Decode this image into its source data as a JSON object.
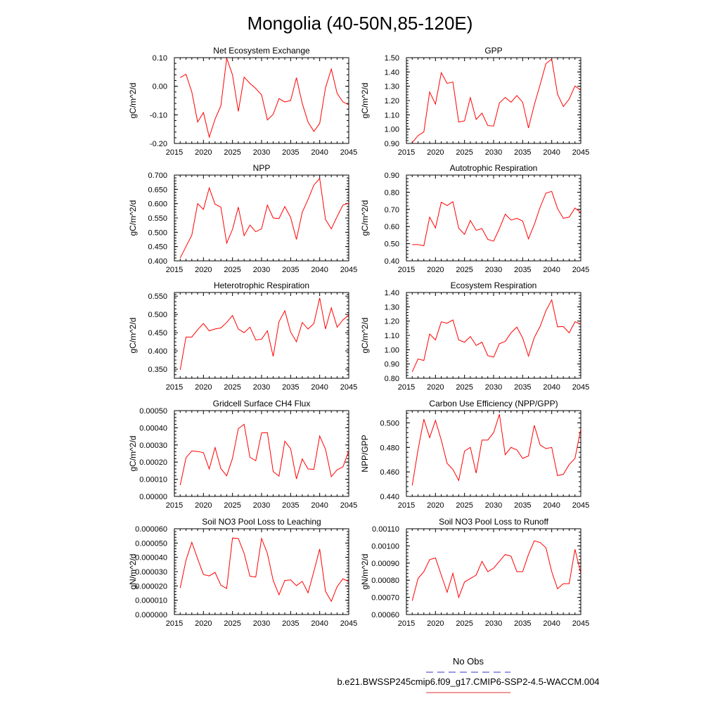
{
  "figure_title": "Mongolia (40-50N,85-120E)",
  "legend": {
    "entries": [
      {
        "label": "No Obs",
        "color": "#3333cc",
        "dashed": true
      },
      {
        "label": "b.e21.BWSSP245cmip6.f09_g17.CMIP6-SSP2-4.5-WACCM.004",
        "color": "#e03030",
        "dashed": false
      }
    ]
  },
  "line_color": "#ff0000",
  "chart_data": [
    {
      "type": "line",
      "title": "Net Ecosystem Exchange",
      "ylabel": "gC/m^2/d",
      "xlim": [
        2015,
        2045
      ],
      "ylim": [
        -0.2,
        0.1
      ],
      "xticks": [
        "2015",
        "2020",
        "2025",
        "2030",
        "2035",
        "2040",
        "2045"
      ],
      "yticks": [
        "-0.20",
        "-0.10",
        "0.00",
        "0.10"
      ],
      "x": [
        2016,
        2017,
        2018,
        2019,
        2020,
        2021,
        2022,
        2023,
        2024,
        2025,
        2026,
        2027,
        2028,
        2029,
        2030,
        2031,
        2032,
        2033,
        2034,
        2035,
        2036,
        2037,
        2038,
        2039,
        2040,
        2041,
        2042,
        2043,
        2044,
        2045
      ],
      "series": [
        {
          "values": [
            0.03,
            0.042,
            -0.02,
            -0.125,
            -0.092,
            -0.178,
            -0.115,
            -0.068,
            0.098,
            0.04,
            -0.088,
            0.032,
            0.01,
            -0.008,
            -0.03,
            -0.118,
            -0.098,
            -0.043,
            -0.055,
            -0.05,
            0.03,
            -0.06,
            -0.125,
            -0.158,
            -0.13,
            -0.005,
            0.06,
            -0.025,
            -0.055,
            -0.065
          ]
        }
      ]
    },
    {
      "type": "line",
      "title": "GPP",
      "ylabel": "gC/m^2/d",
      "xlim": [
        2015,
        2045
      ],
      "ylim": [
        0.9,
        1.5
      ],
      "xticks": [
        "2015",
        "2020",
        "2025",
        "2030",
        "2035",
        "2040",
        "2045"
      ],
      "yticks": [
        "0.90",
        "1.00",
        "1.10",
        "1.20",
        "1.30",
        "1.40",
        "1.50"
      ],
      "x": [
        2016,
        2017,
        2018,
        2019,
        2020,
        2021,
        2022,
        2023,
        2024,
        2025,
        2026,
        2027,
        2028,
        2029,
        2030,
        2031,
        2032,
        2033,
        2034,
        2035,
        2036,
        2037,
        2038,
        2039,
        2040,
        2041,
        2042,
        2043,
        2044,
        2045
      ],
      "series": [
        {
          "values": [
            0.905,
            0.955,
            0.98,
            1.26,
            1.175,
            1.395,
            1.32,
            1.33,
            1.05,
            1.058,
            1.22,
            1.068,
            1.112,
            1.025,
            1.022,
            1.183,
            1.222,
            1.188,
            1.235,
            1.188,
            1.008,
            1.17,
            1.31,
            1.458,
            1.49,
            1.245,
            1.158,
            1.21,
            1.302,
            1.272
          ]
        }
      ]
    },
    {
      "type": "line",
      "title": "NPP",
      "ylabel": "gC/m^2/d",
      "xlim": [
        2015,
        2045
      ],
      "ylim": [
        0.4,
        0.7
      ],
      "xticks": [
        "2015",
        "2020",
        "2025",
        "2030",
        "2035",
        "2040",
        "2045"
      ],
      "yticks": [
        "0.400",
        "0.450",
        "0.500",
        "0.550",
        "0.600",
        "0.650",
        "0.700"
      ],
      "x": [
        2016,
        2017,
        2018,
        2019,
        2020,
        2021,
        2022,
        2023,
        2024,
        2025,
        2026,
        2027,
        2028,
        2029,
        2030,
        2031,
        2032,
        2033,
        2034,
        2035,
        2036,
        2037,
        2038,
        2039,
        2040,
        2041,
        2042,
        2043,
        2044,
        2045
      ],
      "series": [
        {
          "values": [
            0.41,
            0.45,
            0.49,
            0.6,
            0.58,
            0.655,
            0.598,
            0.588,
            0.462,
            0.51,
            0.588,
            0.488,
            0.525,
            0.502,
            0.512,
            0.595,
            0.55,
            0.548,
            0.59,
            0.552,
            0.475,
            0.57,
            0.615,
            0.665,
            0.688,
            0.545,
            0.512,
            0.555,
            0.595,
            0.602
          ]
        }
      ]
    },
    {
      "type": "line",
      "title": "Autotrophic Respiration",
      "ylabel": "gC/m^2/d",
      "xlim": [
        2015,
        2045
      ],
      "ylim": [
        0.4,
        0.9
      ],
      "xticks": [
        "2015",
        "2020",
        "2025",
        "2030",
        "2035",
        "2040",
        "2045"
      ],
      "yticks": [
        "0.40",
        "0.50",
        "0.60",
        "0.70",
        "0.80",
        "0.90"
      ],
      "x": [
        2016,
        2017,
        2018,
        2019,
        2020,
        2021,
        2022,
        2023,
        2024,
        2025,
        2026,
        2027,
        2028,
        2029,
        2030,
        2031,
        2032,
        2033,
        2034,
        2035,
        2036,
        2037,
        2038,
        2039,
        2040,
        2041,
        2042,
        2043,
        2044,
        2045
      ],
      "series": [
        {
          "values": [
            0.495,
            0.495,
            0.488,
            0.655,
            0.592,
            0.742,
            0.722,
            0.745,
            0.59,
            0.555,
            0.635,
            0.578,
            0.588,
            0.525,
            0.515,
            0.588,
            0.672,
            0.638,
            0.648,
            0.632,
            0.528,
            0.612,
            0.712,
            0.795,
            0.805,
            0.705,
            0.648,
            0.655,
            0.708,
            0.682
          ]
        }
      ]
    },
    {
      "type": "line",
      "title": "Heterotrophic Respiration",
      "ylabel": "gC/m^2/d",
      "xlim": [
        2015,
        2045
      ],
      "ylim": [
        0.325,
        0.56
      ],
      "xticks": [
        "2015",
        "2020",
        "2025",
        "2030",
        "2035",
        "2040",
        "2045"
      ],
      "yticks": [
        "0.350",
        "0.400",
        "0.450",
        "0.500",
        "0.550"
      ],
      "x": [
        2016,
        2017,
        2018,
        2019,
        2020,
        2021,
        2022,
        2023,
        2024,
        2025,
        2026,
        2027,
        2028,
        2029,
        2030,
        2031,
        2032,
        2033,
        2034,
        2035,
        2036,
        2037,
        2038,
        2039,
        2040,
        2041,
        2042,
        2043,
        2044,
        2045
      ],
      "series": [
        {
          "values": [
            0.348,
            0.438,
            0.438,
            0.458,
            0.475,
            0.455,
            0.46,
            0.463,
            0.478,
            0.497,
            0.46,
            0.45,
            0.465,
            0.43,
            0.432,
            0.455,
            0.385,
            0.48,
            0.51,
            0.452,
            0.425,
            0.478,
            0.46,
            0.475,
            0.545,
            0.46,
            0.518,
            0.465,
            0.485,
            0.498
          ]
        }
      ]
    },
    {
      "type": "line",
      "title": "Ecosystem Respiration",
      "ylabel": "gC/m^2/d",
      "xlim": [
        2015,
        2045
      ],
      "ylim": [
        0.8,
        1.4
      ],
      "xticks": [
        "2015",
        "2020",
        "2025",
        "2030",
        "2035",
        "2040",
        "2045"
      ],
      "yticks": [
        "0.80",
        "0.90",
        "1.00",
        "1.10",
        "1.20",
        "1.30",
        "1.40"
      ],
      "x": [
        2016,
        2017,
        2018,
        2019,
        2020,
        2021,
        2022,
        2023,
        2024,
        2025,
        2026,
        2027,
        2028,
        2029,
        2030,
        2031,
        2032,
        2033,
        2034,
        2035,
        2036,
        2037,
        2038,
        2039,
        2040,
        2041,
        2042,
        2043,
        2044,
        2045
      ],
      "series": [
        {
          "values": [
            0.845,
            0.935,
            0.925,
            1.11,
            1.068,
            1.195,
            1.185,
            1.208,
            1.068,
            1.052,
            1.092,
            1.03,
            1.052,
            0.958,
            0.948,
            1.042,
            1.058,
            1.118,
            1.158,
            1.082,
            0.955,
            1.085,
            1.162,
            1.272,
            1.348,
            1.16,
            1.162,
            1.118,
            1.195,
            1.18
          ]
        }
      ]
    },
    {
      "type": "line",
      "title": "Gridcell Surface CH4 Flux",
      "ylabel": "gC/m^2/d",
      "xlim": [
        2015,
        2045
      ],
      "ylim": [
        0.0,
        0.0005
      ],
      "xticks": [
        "2015",
        "2020",
        "2025",
        "2030",
        "2035",
        "2040",
        "2045"
      ],
      "yticks": [
        "0.00000",
        "0.00010",
        "0.00020",
        "0.00030",
        "0.00040",
        "0.00050"
      ],
      "x": [
        2016,
        2017,
        2018,
        2019,
        2020,
        2021,
        2022,
        2023,
        2024,
        2025,
        2026,
        2027,
        2028,
        2029,
        2030,
        2031,
        2032,
        2033,
        2034,
        2035,
        2036,
        2037,
        2038,
        2039,
        2040,
        2041,
        2042,
        2043,
        2044,
        2045
      ],
      "series": [
        {
          "values": [
            6.5e-05,
            0.000225,
            0.000265,
            0.000262,
            0.000255,
            0.00016,
            0.000285,
            0.000162,
            0.00012,
            0.000222,
            0.000395,
            0.00042,
            0.000228,
            0.000208,
            0.00037,
            0.000372,
            0.000145,
            0.000118,
            0.000322,
            0.000278,
            0.000102,
            0.000218,
            0.00016,
            0.000158,
            0.000352,
            0.000275,
            0.000115,
            0.000155,
            0.000172,
            0.000265
          ]
        }
      ]
    },
    {
      "type": "line",
      "title": "Carbon Use Efficiency (NPP/GPP)",
      "ylabel": "NPP/GPP",
      "xlim": [
        2015,
        2045
      ],
      "ylim": [
        0.44,
        0.51
      ],
      "xticks": [
        "2015",
        "2020",
        "2025",
        "2030",
        "2035",
        "2040",
        "2045"
      ],
      "yticks": [
        "0.440",
        "0.460",
        "0.480",
        "0.500"
      ],
      "x": [
        2016,
        2017,
        2018,
        2019,
        2020,
        2021,
        2022,
        2023,
        2024,
        2025,
        2026,
        2027,
        2028,
        2029,
        2030,
        2031,
        2032,
        2033,
        2034,
        2035,
        2036,
        2037,
        2038,
        2039,
        2040,
        2041,
        2042,
        2043,
        2044,
        2045
      ],
      "series": [
        {
          "values": [
            0.449,
            0.478,
            0.503,
            0.488,
            0.502,
            0.486,
            0.467,
            0.462,
            0.453,
            0.477,
            0.48,
            0.459,
            0.486,
            0.486,
            0.492,
            0.507,
            0.474,
            0.48,
            0.478,
            0.471,
            0.473,
            0.498,
            0.482,
            0.479,
            0.48,
            0.457,
            0.458,
            0.466,
            0.471,
            0.495
          ]
        }
      ]
    },
    {
      "type": "line",
      "title": "Soil NO3 Pool Loss to Leaching",
      "ylabel": "gN/m^2/d",
      "xlim": [
        2015,
        2045
      ],
      "ylim": [
        0.0,
        6e-05
      ],
      "xticks": [
        "2015",
        "2020",
        "2025",
        "2030",
        "2035",
        "2040",
        "2045"
      ],
      "yticks": [
        "0.000000",
        "0.000010",
        "0.000020",
        "0.000030",
        "0.000040",
        "0.000050",
        "0.000060"
      ],
      "x": [
        2016,
        2017,
        2018,
        2019,
        2020,
        2021,
        2022,
        2023,
        2024,
        2025,
        2026,
        2027,
        2028,
        2029,
        2030,
        2031,
        2032,
        2033,
        2034,
        2035,
        2036,
        2037,
        2038,
        2039,
        2040,
        2041,
        2042,
        2043,
        2044,
        2045
      ],
      "series": [
        {
          "values": [
            1.85e-05,
            3.8e-05,
            5.05e-05,
            3.9e-05,
            2.8e-05,
            2.7e-05,
            2.95e-05,
            2.05e-05,
            1.82e-05,
            5.35e-05,
            5.32e-05,
            4.28e-05,
            2.68e-05,
            2.62e-05,
            5.32e-05,
            4.28e-05,
            2.38e-05,
            1.38e-05,
            2.38e-05,
            2.42e-05,
            2.02e-05,
            2.32e-05,
            1.52e-05,
            3.02e-05,
            4.58e-05,
            1.62e-05,
            9.2e-06,
            1.95e-05,
            2.5e-05,
            2.3e-05
          ]
        }
      ]
    },
    {
      "type": "line",
      "title": "Soil NO3 Pool Loss to Runoff",
      "ylabel": "gN/m^2/d",
      "xlim": [
        2015,
        2045
      ],
      "ylim": [
        0.0006,
        0.0011
      ],
      "xticks": [
        "2015",
        "2020",
        "2025",
        "2030",
        "2035",
        "2040",
        "2045"
      ],
      "yticks": [
        "0.00060",
        "0.00070",
        "0.00080",
        "0.00090",
        "0.00100",
        "0.00110"
      ],
      "x": [
        2016,
        2017,
        2018,
        2019,
        2020,
        2021,
        2022,
        2023,
        2024,
        2025,
        2026,
        2027,
        2028,
        2029,
        2030,
        2031,
        2032,
        2033,
        2034,
        2035,
        2036,
        2037,
        2038,
        2039,
        2040,
        2041,
        2042,
        2043,
        2044,
        2045
      ],
      "series": [
        {
          "values": [
            0.00068,
            0.00081,
            0.00085,
            0.00092,
            0.00093,
            0.00083,
            0.00073,
            0.00084,
            0.0007,
            0.00079,
            0.00081,
            0.00083,
            0.00091,
            0.00085,
            0.00087,
            0.00091,
            0.00095,
            0.00094,
            0.00085,
            0.00085,
            0.00095,
            0.00103,
            0.00102,
            0.00099,
            0.00085,
            0.00075,
            0.00078,
            0.00078,
            0.00098,
            0.00084
          ]
        }
      ]
    }
  ]
}
